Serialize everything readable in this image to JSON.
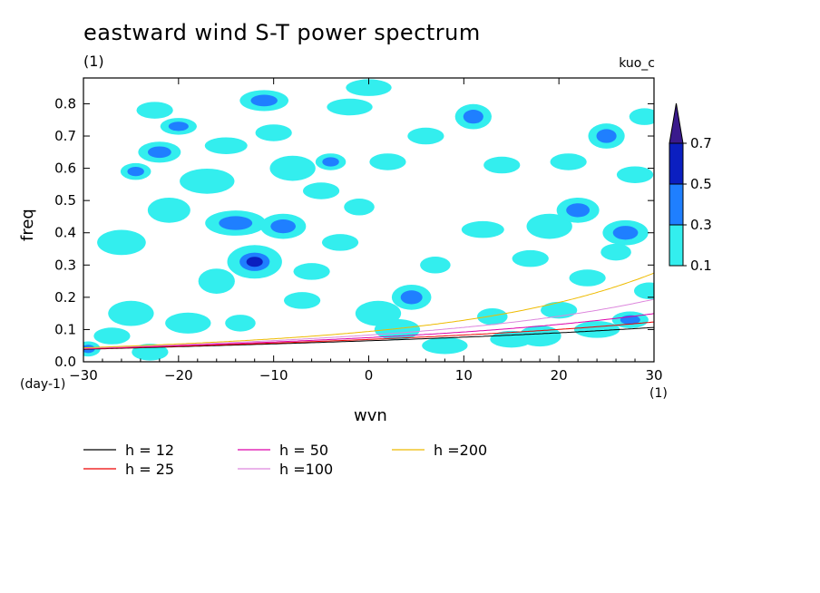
{
  "title": "eastward wind S-T power spectrum",
  "unit_top_left": "(1)",
  "experiment_tag": "kuo_c",
  "chart_data": {
    "type": "contour",
    "title": "eastward wind S-T power spectrum",
    "xlabel": "wvn",
    "ylabel": "freq",
    "x_unit": "(1)",
    "y_unit": "(day-1)",
    "xlim": [
      -30,
      30
    ],
    "ylim": [
      0,
      0.88
    ],
    "xticks": [
      -30,
      -20,
      -10,
      0,
      10,
      20,
      30
    ],
    "yticks": [
      0.0,
      0.1,
      0.2,
      0.3,
      0.4,
      0.5,
      0.6,
      0.7,
      0.8
    ],
    "contour_levels": [
      0.1,
      0.3,
      0.5,
      0.7
    ],
    "level_colors": [
      "#33eeee",
      "#1f7fff",
      "#0b1fc0",
      "#3a1a8c"
    ],
    "dispersion_curves": [
      {
        "label": "h = 12",
        "h": 12,
        "color": "#000000"
      },
      {
        "label": "h = 25",
        "h": 25,
        "color": "#ee0000"
      },
      {
        "label": "h = 50",
        "h": 50,
        "color": "#dd00aa"
      },
      {
        "label": "h =100",
        "h": 100,
        "color": "#dd88dd"
      },
      {
        "label": "h =200",
        "h": 200,
        "color": "#eebb00"
      }
    ],
    "blobs": [
      [
        -29.5,
        0.04,
        0.8,
        0.018,
        2
      ],
      [
        -27,
        0.08,
        1.2,
        0.02,
        1
      ],
      [
        -25,
        0.15,
        1.5,
        0.03,
        1
      ],
      [
        -24.5,
        0.59,
        1.0,
        0.02,
        2
      ],
      [
        -26,
        0.37,
        1.6,
        0.03,
        1
      ],
      [
        -23,
        0.03,
        1.2,
        0.02,
        1
      ],
      [
        -21,
        0.47,
        1.4,
        0.03,
        1
      ],
      [
        -20,
        0.73,
        1.2,
        0.02,
        2
      ],
      [
        -22.5,
        0.78,
        1.2,
        0.02,
        1
      ],
      [
        -22,
        0.65,
        1.4,
        0.025,
        2
      ],
      [
        -19,
        0.12,
        1.5,
        0.025,
        1
      ],
      [
        -17,
        0.56,
        1.8,
        0.03,
        1
      ],
      [
        -16,
        0.25,
        1.2,
        0.03,
        1
      ],
      [
        -15,
        0.67,
        1.4,
        0.02,
        1
      ],
      [
        -14,
        0.43,
        2.0,
        0.03,
        2
      ],
      [
        -13.5,
        0.12,
        1.0,
        0.02,
        1
      ],
      [
        -12,
        0.31,
        1.8,
        0.04,
        3
      ],
      [
        -11,
        0.81,
        1.6,
        0.025,
        2
      ],
      [
        -10,
        0.71,
        1.2,
        0.02,
        1
      ],
      [
        -9,
        0.42,
        1.5,
        0.03,
        2
      ],
      [
        -8,
        0.6,
        1.5,
        0.03,
        1
      ],
      [
        -7,
        0.19,
        1.2,
        0.02,
        1
      ],
      [
        -6,
        0.28,
        1.2,
        0.02,
        1
      ],
      [
        -5,
        0.53,
        1.2,
        0.02,
        1
      ],
      [
        -4,
        0.62,
        1.0,
        0.02,
        2
      ],
      [
        -3,
        0.37,
        1.2,
        0.02,
        1
      ],
      [
        -2,
        0.79,
        1.5,
        0.02,
        1
      ],
      [
        -1,
        0.48,
        1.0,
        0.02,
        1
      ],
      [
        0,
        0.85,
        1.5,
        0.02,
        1
      ],
      [
        1,
        0.15,
        1.5,
        0.03,
        1
      ],
      [
        2,
        0.62,
        1.2,
        0.02,
        1
      ],
      [
        3,
        0.1,
        1.5,
        0.025,
        1
      ],
      [
        4.5,
        0.2,
        1.3,
        0.03,
        2
      ],
      [
        6,
        0.7,
        1.2,
        0.02,
        1
      ],
      [
        7,
        0.3,
        1.0,
        0.02,
        1
      ],
      [
        8,
        0.05,
        1.5,
        0.02,
        1
      ],
      [
        11,
        0.76,
        1.2,
        0.03,
        2
      ],
      [
        12,
        0.41,
        1.4,
        0.02,
        1
      ],
      [
        13,
        0.14,
        1.0,
        0.02,
        1
      ],
      [
        14,
        0.61,
        1.2,
        0.02,
        1
      ],
      [
        15,
        0.07,
        1.4,
        0.02,
        1
      ],
      [
        17,
        0.32,
        1.2,
        0.02,
        1
      ],
      [
        18,
        0.08,
        1.4,
        0.025,
        1
      ],
      [
        19,
        0.42,
        1.5,
        0.03,
        1
      ],
      [
        20,
        0.16,
        1.2,
        0.02,
        1
      ],
      [
        21,
        0.62,
        1.2,
        0.02,
        1
      ],
      [
        22,
        0.47,
        1.4,
        0.03,
        2
      ],
      [
        23,
        0.26,
        1.2,
        0.02,
        1
      ],
      [
        24,
        0.1,
        1.5,
        0.02,
        1
      ],
      [
        25,
        0.7,
        1.2,
        0.03,
        2
      ],
      [
        26,
        0.34,
        1.0,
        0.02,
        1
      ],
      [
        27,
        0.4,
        1.5,
        0.03,
        2
      ],
      [
        27.5,
        0.13,
        1.2,
        0.02,
        2
      ],
      [
        28,
        0.58,
        1.2,
        0.02,
        1
      ],
      [
        29,
        0.76,
        1.0,
        0.02,
        1
      ],
      [
        29.5,
        0.22,
        1.0,
        0.02,
        1
      ]
    ]
  },
  "legend": [
    {
      "label": "h = 12",
      "color": "#000000"
    },
    {
      "label": "h = 25",
      "color": "#ee0000"
    },
    {
      "label": "h = 50",
      "color": "#dd00aa"
    },
    {
      "label": "h =100",
      "color": "#dd88dd"
    },
    {
      "label": "h =200",
      "color": "#eebb00"
    }
  ],
  "colorbar_labels": [
    "0.7",
    "0.5",
    "0.3",
    "0.1"
  ]
}
